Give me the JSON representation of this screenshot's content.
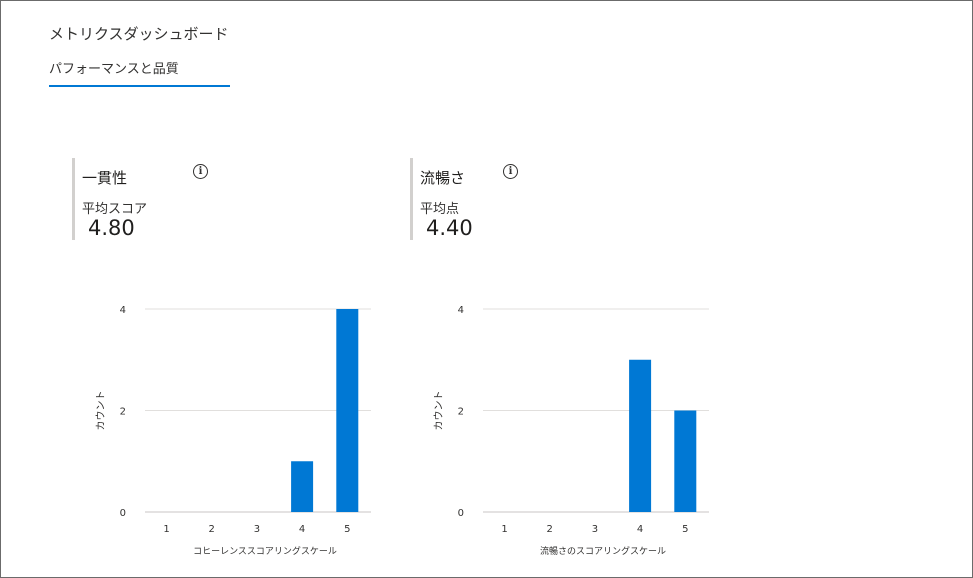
{
  "header": {
    "title": "メトリクスダッシュボード",
    "tabs": [
      {
        "label": "パフォーマンスと品質",
        "selected": true
      }
    ]
  },
  "colors": {
    "accent": "#0078d4",
    "bar": "#0078d4",
    "gridline": "#e1dfdd",
    "card_border": "#d2d0ce"
  },
  "metrics": [
    {
      "name": "一貫性",
      "info_icon": "info-icon",
      "sub_label": "平均スコア",
      "value": "4.80"
    },
    {
      "name": "流暢さ",
      "info_icon": "info-icon",
      "sub_label": "平均点",
      "value": "4.40"
    }
  ],
  "chart_data": [
    {
      "type": "bar",
      "title": "",
      "categories": [
        "1",
        "2",
        "3",
        "4",
        "5"
      ],
      "values": [
        0,
        0,
        0,
        1,
        4
      ],
      "xlabel": "コヒーレンススコアリングスケール",
      "ylabel": "カウント",
      "ylim": [
        0,
        4
      ],
      "yticks": [
        "0",
        "2",
        "4"
      ],
      "grid": true
    },
    {
      "type": "bar",
      "title": "",
      "categories": [
        "1",
        "2",
        "3",
        "4",
        "5"
      ],
      "values": [
        0,
        0,
        0,
        3,
        2
      ],
      "xlabel": "流暢さのスコアリングスケール",
      "ylabel": "カウント",
      "ylim": [
        0,
        4
      ],
      "yticks": [
        "0",
        "2",
        "4"
      ],
      "grid": true
    }
  ]
}
